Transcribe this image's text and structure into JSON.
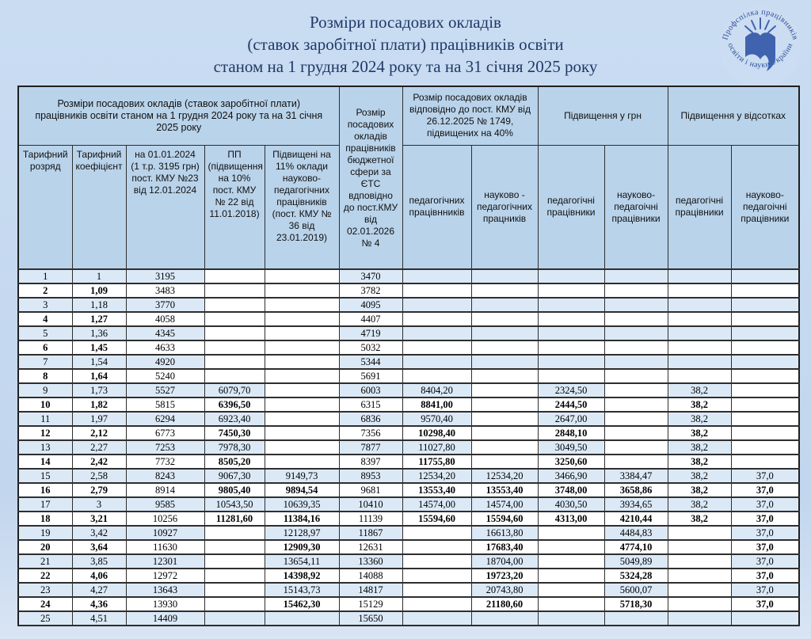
{
  "title": {
    "line1": "Розміри посадових окладів",
    "line2": "(ставок заробітної плати) працівників освіти",
    "line3": "станом на  1 грудня 2024 року та на 31 січня 2025 року"
  },
  "logo": {
    "arc_top": "Профспілка працівників",
    "arc_bottom": "· освіти і науки України ·"
  },
  "colors": {
    "page_bg": "#c4d7ef",
    "header_bg": "#b9d3ea",
    "row_odd_bg": "#dbe9f7",
    "row_even_bg": "#ffffff",
    "title_text": "#203a66",
    "logo_blue": "#3f63ae",
    "border": "#2e2e2e"
  },
  "table": {
    "group_headers": {
      "left": "Розміри посадових окладів (ставок заробітної плати) працівників освіти станом на  1 грудня 2024 року та на 31 січня 2025 року",
      "etc": "Розмір посадових окладів працівників бюджетної сфери за ЄТС вдповідно до пост.КМУ від 02.01.2026 № 4",
      "kmu_1749": "Розмір посадових окладів відповідно до пост. КМУ від 26.12.2025 № 1749, підвищених на 40%",
      "raise_uah": "Підвищення  у грн",
      "raise_pct": "Підвищення у відсотках"
    },
    "sub_headers": [
      "Тарифний розряд",
      "Тарифний коефіцієнт",
      "на 01.01.2024 (1 т.р. 3195 грн) пост. КМУ №23 від 12.01.2024",
      "ПП (підвищення на 10% пост. КМУ № 22 від 11.01.2018)",
      "Підвищені на 11% оклади науково-педагогічних працівників (пост. КМУ № 36 від 23.01.2019)",
      "педагогічних працівнників",
      "науково - педагогічних працників",
      "педагогічні працівники",
      "науково-педагоічні працівники",
      "педагогічні працівники",
      "науково-педагоічні працівники"
    ],
    "rows": [
      [
        "1",
        "1",
        "3195",
        "",
        "",
        "3470",
        "",
        "",
        "",
        "",
        "",
        ""
      ],
      [
        "2",
        "1,09",
        "3483",
        "",
        "",
        "3782",
        "",
        "",
        "",
        "",
        "",
        ""
      ],
      [
        "3",
        "1,18",
        "3770",
        "",
        "",
        "4095",
        "",
        "",
        "",
        "",
        "",
        ""
      ],
      [
        "4",
        "1,27",
        "4058",
        "",
        "",
        "4407",
        "",
        "",
        "",
        "",
        "",
        ""
      ],
      [
        "5",
        "1,36",
        "4345",
        "",
        "",
        "4719",
        "",
        "",
        "",
        "",
        "",
        ""
      ],
      [
        "6",
        "1,45",
        "4633",
        "",
        "",
        "5032",
        "",
        "",
        "",
        "",
        "",
        ""
      ],
      [
        "7",
        "1,54",
        "4920",
        "",
        "",
        "5344",
        "",
        "",
        "",
        "",
        "",
        ""
      ],
      [
        "8",
        "1,64",
        "5240",
        "",
        "",
        "5691",
        "",
        "",
        "",
        "",
        "",
        ""
      ],
      [
        "9",
        "1,73",
        "5527",
        "6079,70",
        "",
        "6003",
        "8404,20",
        "",
        "2324,50",
        "",
        "38,2",
        ""
      ],
      [
        "10",
        "1,82",
        "5815",
        "6396,50",
        "",
        "6315",
        "8841,00",
        "",
        "2444,50",
        "",
        "38,2",
        ""
      ],
      [
        "11",
        "1,97",
        "6294",
        "6923,40",
        "",
        "6836",
        "9570,40",
        "",
        "2647,00",
        "",
        "38,2",
        ""
      ],
      [
        "12",
        "2,12",
        "6773",
        "7450,30",
        "",
        "7356",
        "10298,40",
        "",
        "2848,10",
        "",
        "38,2",
        ""
      ],
      [
        "13",
        "2,27",
        "7253",
        "7978,30",
        "",
        "7877",
        "11027,80",
        "",
        "3049,50",
        "",
        "38,2",
        ""
      ],
      [
        "14",
        "2,42",
        "7732",
        "8505,20",
        "",
        "8397",
        "11755,80",
        "",
        "3250,60",
        "",
        "38,2",
        ""
      ],
      [
        "15",
        "2,58",
        "8243",
        "9067,30",
        "9149,73",
        "8953",
        "12534,20",
        "12534,20",
        "3466,90",
        "3384,47",
        "38,2",
        "37,0"
      ],
      [
        "16",
        "2,79",
        "8914",
        "9805,40",
        "9894,54",
        "9681",
        "13553,40",
        "13553,40",
        "3748,00",
        "3658,86",
        "38,2",
        "37,0"
      ],
      [
        "17",
        "3",
        "9585",
        "10543,50",
        "10639,35",
        "10410",
        "14574,00",
        "14574,00",
        "4030,50",
        "3934,65",
        "38,2",
        "37,0"
      ],
      [
        "18",
        "3,21",
        "10256",
        "11281,60",
        "11384,16",
        "11139",
        "15594,60",
        "15594,60",
        "4313,00",
        "4210,44",
        "38,2",
        "37,0"
      ],
      [
        "19",
        "3,42",
        "10927",
        "",
        "12128,97",
        "11867",
        "",
        "16613,80",
        "",
        "4484,83",
        "",
        "37,0"
      ],
      [
        "20",
        "3,64",
        "11630",
        "",
        "12909,30",
        "12631",
        "",
        "17683,40",
        "",
        "4774,10",
        "",
        "37,0"
      ],
      [
        "21",
        "3,85",
        "12301",
        "",
        "13654,11",
        "13360",
        "",
        "18704,00",
        "",
        "5049,89",
        "",
        "37,0"
      ],
      [
        "22",
        "4,06",
        "12972",
        "",
        "14398,92",
        "14088",
        "",
        "19723,20",
        "",
        "5324,28",
        "",
        "37,0"
      ],
      [
        "23",
        "4,27",
        "13643",
        "",
        "15143,73",
        "14817",
        "",
        "20743,80",
        "",
        "5600,07",
        "",
        "37,0"
      ],
      [
        "24",
        "4,36",
        "13930",
        "",
        "15462,30",
        "15129",
        "",
        "21180,60",
        "",
        "5718,30",
        "",
        "37,0"
      ],
      [
        "25",
        "4,51",
        "14409",
        "",
        "",
        "15650",
        "",
        "",
        "",
        "",
        "",
        ""
      ]
    ]
  }
}
